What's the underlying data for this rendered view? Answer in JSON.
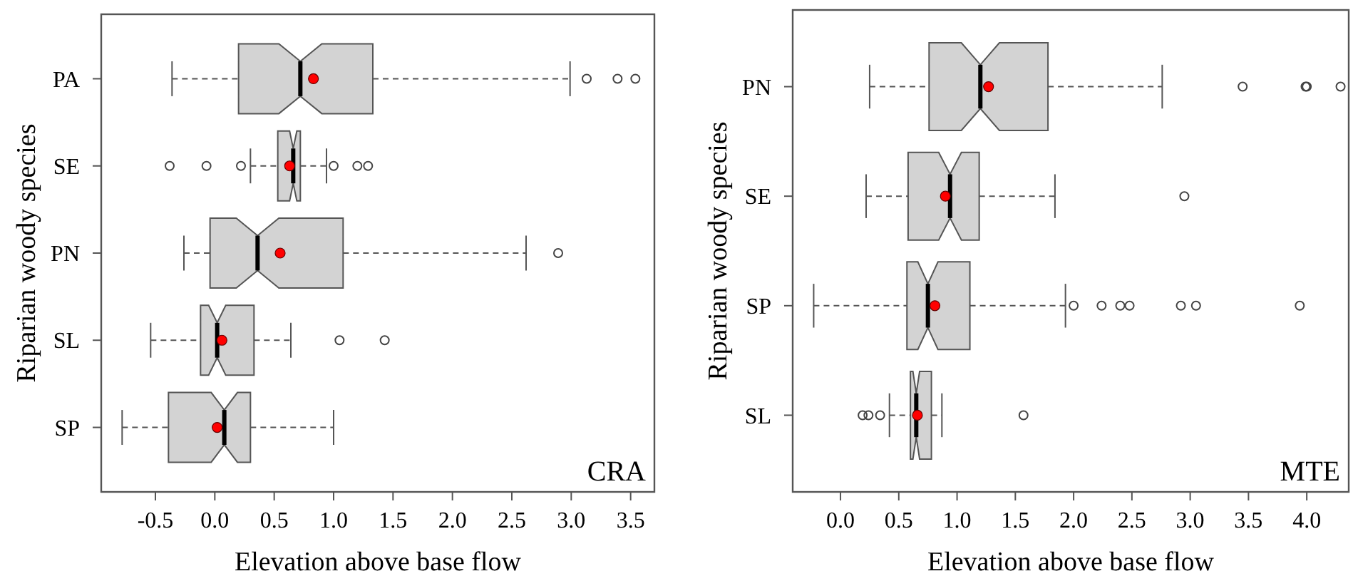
{
  "chart_data": [
    {
      "type": "box",
      "orientation": "horizontal",
      "xlabel": "Elevation above base flow",
      "ylabel": "Riparian woody species",
      "annotations": [
        "CRA"
      ],
      "categories": [
        "PA",
        "SE",
        "PN",
        "SL",
        "SP"
      ],
      "xlim": [
        -0.956,
        3.7
      ],
      "xticks": [
        -0.5,
        {
          "value": 0,
          "label": "0.0"
        },
        0.5,
        {
          "value": 1,
          "label": "1.0"
        },
        1.5,
        {
          "value": 2,
          "label": "2.0"
        },
        2.5,
        {
          "value": 3,
          "label": "3.0"
        },
        3.5
      ],
      "boxes": [
        {
          "low": -0.36,
          "q1": 0.2,
          "median": 0.72,
          "q3": 1.33,
          "high": 2.99,
          "mean": 0.83,
          "outliers": [
            3.13,
            3.39,
            3.54
          ]
        },
        {
          "low": 0.3,
          "q1": 0.53,
          "median": 0.66,
          "q3": 0.72,
          "high": 0.94,
          "mean": 0.63,
          "outliers": [
            -0.38,
            -0.07,
            0.22,
            1.0,
            1.2,
            1.29
          ]
        },
        {
          "low": -0.26,
          "q1": -0.04,
          "median": 0.36,
          "q3": 1.08,
          "high": 2.62,
          "mean": 0.55,
          "outliers": [
            2.89
          ]
        },
        {
          "low": -0.54,
          "q1": -0.12,
          "median": 0.02,
          "q3": 0.33,
          "high": 0.64,
          "mean": 0.06,
          "outliers": [
            1.05,
            1.43
          ]
        },
        {
          "low": -0.78,
          "q1": -0.39,
          "median": 0.08,
          "q3": 0.3,
          "high": 1.0,
          "mean": 0.02
        }
      ]
    },
    {
      "type": "box",
      "orientation": "horizontal",
      "xlabel": "Elevation above base flow",
      "ylabel": "Riparian woody species",
      "annotations": [
        "MTE"
      ],
      "categories": [
        "PN",
        "SE",
        "SP",
        "SL"
      ],
      "xlim": [
        -0.41,
        4.36
      ],
      "xticks": [
        {
          "value": 0,
          "label": "0.0"
        },
        0.5,
        {
          "value": 1,
          "label": "1.0"
        },
        1.5,
        {
          "value": 2,
          "label": "2.0"
        },
        2.5,
        {
          "value": 3,
          "label": "3.0"
        },
        3.5,
        {
          "value": 4,
          "label": "4.0"
        }
      ],
      "boxes": [
        {
          "low": 0.25,
          "q1": 0.76,
          "median": 1.2,
          "q3": 1.78,
          "high": 2.76,
          "mean": 1.27,
          "outliers": [
            3.45,
            3.99,
            4.0,
            4.29
          ]
        },
        {
          "low": 0.22,
          "q1": 0.58,
          "median": 0.94,
          "q3": 1.19,
          "high": 1.84,
          "mean": 0.9,
          "outliers": [
            2.95
          ]
        },
        {
          "low": -0.23,
          "q1": 0.57,
          "median": 0.75,
          "q3": 1.11,
          "high": 1.93,
          "mean": 0.81,
          "outliers": [
            2.0,
            2.24,
            2.4,
            2.48,
            2.92,
            3.05,
            3.94
          ]
        },
        {
          "low": 0.42,
          "q1": 0.6,
          "median": 0.65,
          "q3": 0.78,
          "high": 0.87,
          "mean": 0.66,
          "outliers": [
            0.19,
            0.24,
            0.34,
            1.57
          ]
        }
      ]
    }
  ]
}
